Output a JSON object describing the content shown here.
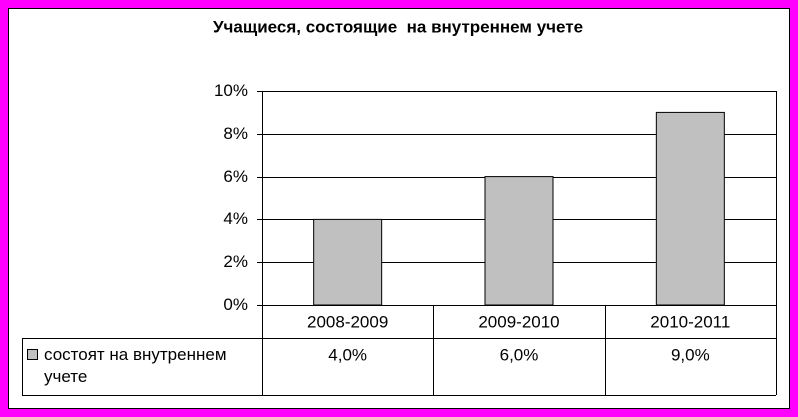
{
  "chart_data": {
    "type": "bar",
    "title": "Учащиеся, состоящие  на внутреннем учете",
    "categories": [
      "2008-2009",
      "2009-2010",
      "2010-2011"
    ],
    "series": [
      {
        "name": "состоят на внутреннем учете",
        "color": "#c0c0c0",
        "values": [
          4,
          6,
          9
        ],
        "value_labels": [
          "4,0%",
          "6,0%",
          "9,0%"
        ]
      }
    ],
    "ylim": [
      0,
      10
    ],
    "yticks": [
      {
        "value": 0,
        "label": "0%"
      },
      {
        "value": 2,
        "label": "2%"
      },
      {
        "value": 4,
        "label": "4%"
      },
      {
        "value": 6,
        "label": "6%"
      },
      {
        "value": 8,
        "label": "8%"
      },
      {
        "value": 10,
        "label": "10%"
      }
    ],
    "grid": true
  }
}
